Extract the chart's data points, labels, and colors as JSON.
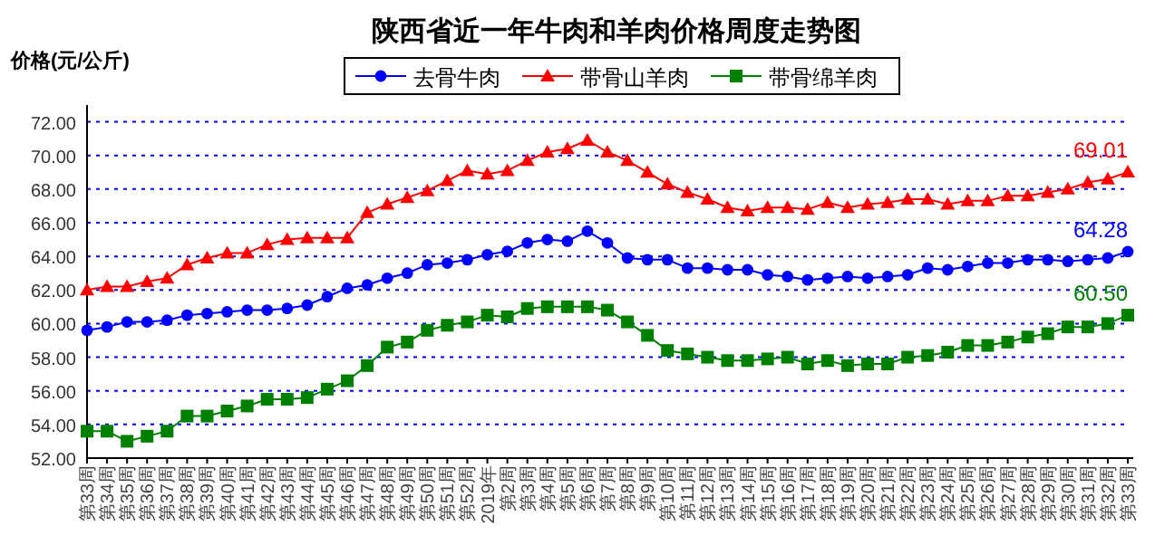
{
  "chart_data": {
    "type": "line",
    "title": "陕西省近一年牛肉和羊肉价格周度走势图",
    "ylabel": "价格(元/公斤)",
    "categories": [
      "第33周",
      "第34周",
      "第35周",
      "第36周",
      "第37周",
      "第38周",
      "第39周",
      "第40周",
      "第41周",
      "第42周",
      "第43周",
      "第44周",
      "第45周",
      "第46周",
      "第47周",
      "第48周",
      "第49周",
      "第50周",
      "第51周",
      "第52周",
      "2019年",
      "第2周",
      "第3周",
      "第4周",
      "第5周",
      "第6周",
      "第7周",
      "第8周",
      "第9周",
      "第10周",
      "第11周",
      "第12周",
      "第13周",
      "第14周",
      "第15周",
      "第16周",
      "第17周",
      "第18周",
      "第19周",
      "第20周",
      "第21周",
      "第22周",
      "第23周",
      "第24周",
      "第25周",
      "第26周",
      "第27周",
      "第28周",
      "第29周",
      "第30周",
      "第31周",
      "第32周",
      "第33周"
    ],
    "series": [
      {
        "name": "去骨牛肉",
        "color": "#0000ff",
        "marker": "circle",
        "values": [
          59.6,
          59.8,
          60.1,
          60.1,
          60.2,
          60.5,
          60.6,
          60.7,
          60.8,
          60.8,
          60.9,
          61.1,
          61.6,
          62.1,
          62.3,
          62.7,
          63.0,
          63.5,
          63.6,
          63.8,
          64.1,
          64.3,
          64.8,
          65.0,
          64.9,
          65.5,
          64.8,
          63.9,
          63.8,
          63.8,
          63.3,
          63.3,
          63.2,
          63.2,
          62.9,
          62.8,
          62.6,
          62.7,
          62.8,
          62.7,
          62.8,
          62.9,
          63.3,
          63.2,
          63.4,
          63.6,
          63.6,
          63.8,
          63.8,
          63.7,
          63.8,
          63.9,
          64.28
        ],
        "value_labels": [
          null,
          null,
          null,
          null,
          null,
          null,
          null,
          null,
          null,
          null,
          null,
          null,
          null,
          null,
          null,
          null,
          null,
          null,
          null,
          null,
          null,
          null,
          null,
          null,
          null,
          null,
          null,
          null,
          null,
          null,
          null,
          null,
          null,
          null,
          null,
          null,
          null,
          null,
          null,
          null,
          null,
          null,
          null,
          null,
          null,
          null,
          null,
          null,
          null,
          null,
          null,
          null,
          "64.28"
        ]
      },
      {
        "name": "带骨山羊肉",
        "color": "#ff0000",
        "marker": "triangle",
        "values": [
          62.0,
          62.2,
          62.2,
          62.5,
          62.7,
          63.5,
          63.9,
          64.2,
          64.2,
          64.7,
          65.0,
          65.1,
          65.1,
          65.1,
          66.6,
          67.1,
          67.5,
          67.9,
          68.5,
          69.1,
          68.9,
          69.1,
          69.7,
          70.2,
          70.4,
          70.9,
          70.2,
          69.7,
          69.0,
          68.3,
          67.8,
          67.4,
          66.9,
          66.7,
          66.9,
          66.9,
          66.8,
          67.2,
          66.9,
          67.1,
          67.2,
          67.4,
          67.4,
          67.1,
          67.3,
          67.3,
          67.6,
          67.6,
          67.8,
          68.0,
          68.4,
          68.6,
          69.01
        ],
        "value_labels": [
          null,
          null,
          null,
          null,
          null,
          null,
          null,
          null,
          null,
          null,
          null,
          null,
          null,
          null,
          null,
          null,
          null,
          null,
          null,
          null,
          null,
          null,
          null,
          null,
          null,
          null,
          null,
          null,
          null,
          null,
          null,
          null,
          null,
          null,
          null,
          null,
          null,
          null,
          null,
          null,
          null,
          null,
          null,
          null,
          null,
          null,
          null,
          null,
          null,
          null,
          null,
          null,
          "69.01"
        ]
      },
      {
        "name": "带骨绵羊肉",
        "color": "#008000",
        "marker": "square",
        "values": [
          53.6,
          53.6,
          53.0,
          53.3,
          53.6,
          54.5,
          54.5,
          54.8,
          55.1,
          55.5,
          55.5,
          55.6,
          56.1,
          56.6,
          57.5,
          58.6,
          58.9,
          59.6,
          59.9,
          60.1,
          60.5,
          60.4,
          60.9,
          61.0,
          61.0,
          61.0,
          60.8,
          60.1,
          59.3,
          58.4,
          58.2,
          58.0,
          57.8,
          57.8,
          57.9,
          58.0,
          57.6,
          57.8,
          57.5,
          57.6,
          57.6,
          58.0,
          58.1,
          58.3,
          58.7,
          58.7,
          58.9,
          59.2,
          59.4,
          59.8,
          59.8,
          60.0,
          60.5
        ],
        "value_labels": [
          null,
          null,
          null,
          null,
          null,
          null,
          null,
          null,
          null,
          null,
          null,
          null,
          null,
          null,
          null,
          null,
          null,
          null,
          null,
          null,
          null,
          null,
          null,
          null,
          null,
          null,
          null,
          null,
          null,
          null,
          null,
          null,
          null,
          null,
          null,
          null,
          null,
          null,
          null,
          null,
          null,
          null,
          null,
          null,
          null,
          null,
          null,
          null,
          null,
          null,
          null,
          null,
          "60.50"
        ]
      }
    ],
    "ylim": [
      52,
      73
    ],
    "yticks": [
      {
        "value": 52,
        "label": "52.00"
      },
      {
        "value": 54,
        "label": "54.00"
      },
      {
        "value": 56,
        "label": "56.00"
      },
      {
        "value": 58,
        "label": "58.00"
      },
      {
        "value": 60,
        "label": "60.00"
      },
      {
        "value": 62,
        "label": "62.00"
      },
      {
        "value": 64,
        "label": "64.00"
      },
      {
        "value": 66,
        "label": "66.00"
      },
      {
        "value": 68,
        "label": "68.00"
      },
      {
        "value": 70,
        "label": "70.00"
      },
      {
        "value": 72,
        "label": "72.00"
      }
    ],
    "grid": "y",
    "legend": "top",
    "line_style": "solid"
  }
}
